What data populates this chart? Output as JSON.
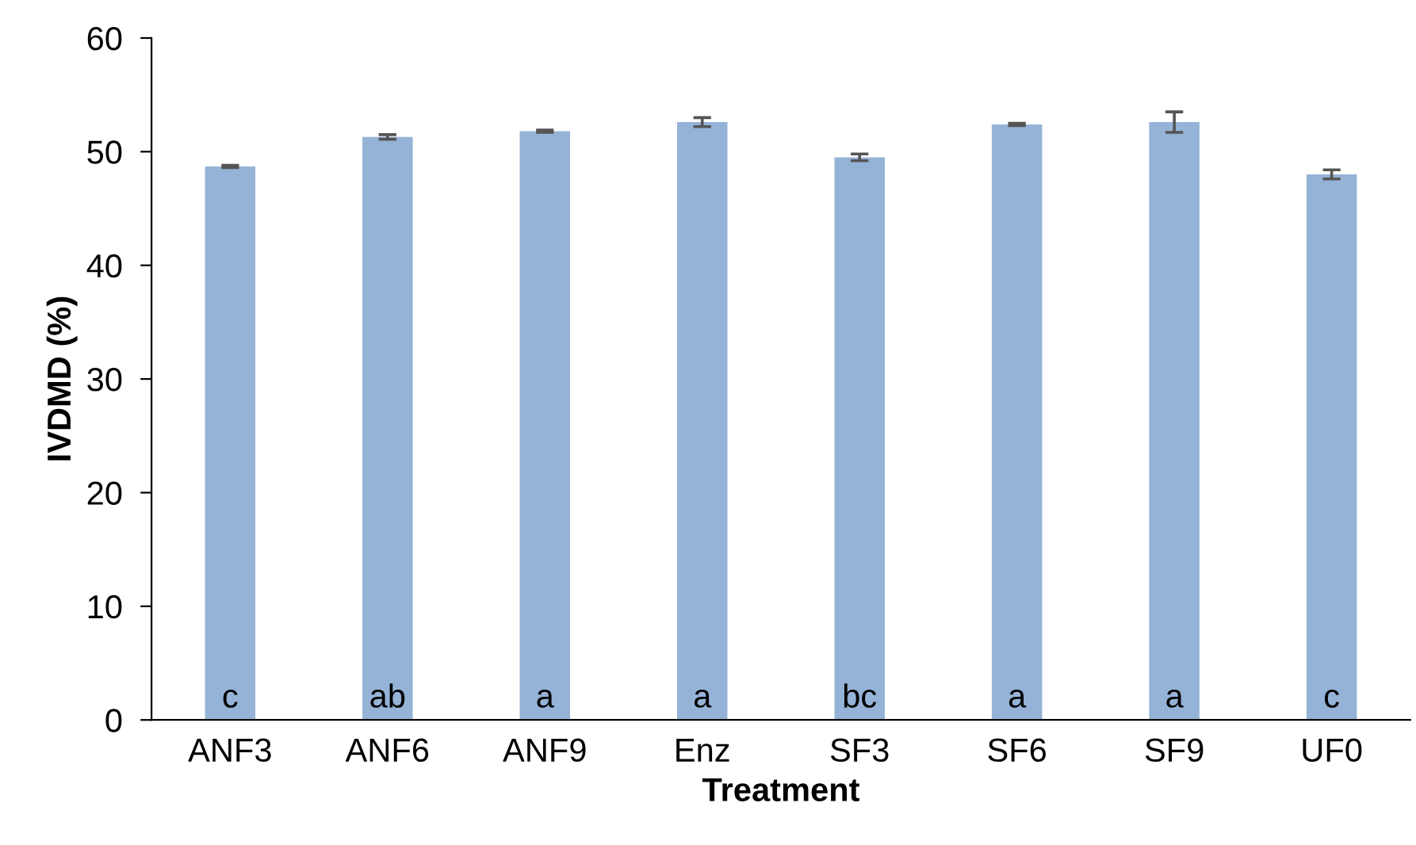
{
  "chart_data": {
    "type": "bar",
    "xlabel": "Treatment",
    "ylabel": "IVDMD (%)",
    "categories": [
      "ANF3",
      "ANF6",
      "ANF9",
      "Enz",
      "SF3",
      "SF6",
      "SF9",
      "UF0"
    ],
    "values": [
      48.7,
      51.3,
      51.8,
      52.6,
      49.5,
      52.4,
      52.6,
      48.0
    ],
    "errors": [
      0.1,
      0.2,
      0.1,
      0.4,
      0.3,
      0.1,
      0.9,
      0.4
    ],
    "color": "#95b3d7",
    "ylim": [
      0,
      60
    ],
    "yticks": [
      0,
      10,
      20,
      30,
      40,
      50,
      60
    ],
    "grid": false,
    "legend": false,
    "annotations": [
      {
        "text": "c",
        "x": "ANF3",
        "y": 0
      },
      {
        "text": "ab",
        "x": "ANF6",
        "y": 0
      },
      {
        "text": "a",
        "x": "ANF9",
        "y": 0
      },
      {
        "text": "a",
        "x": "Enz",
        "y": 0
      },
      {
        "text": "bc",
        "x": "SF3",
        "y": 0
      },
      {
        "text": "a",
        "x": "SF6",
        "y": 0
      },
      {
        "text": "a",
        "x": "SF9",
        "y": 0
      },
      {
        "text": "c",
        "x": "UF0",
        "y": 0
      }
    ]
  }
}
